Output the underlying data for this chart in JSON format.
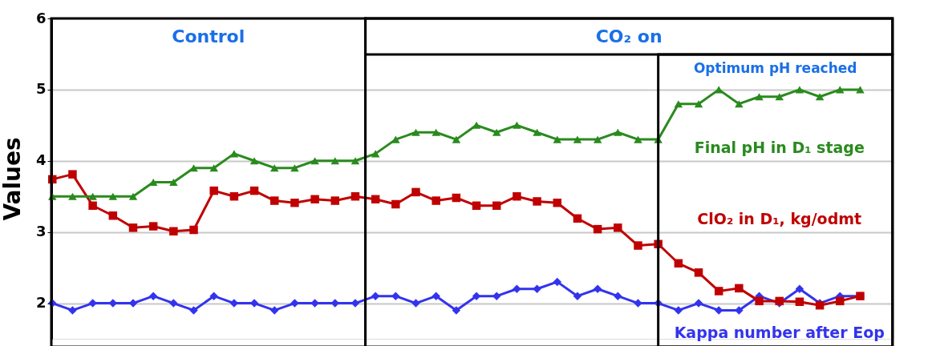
{
  "chart_data": {
    "type": "line",
    "ylabel": "Values",
    "ylim": [
      1.5,
      6
    ],
    "yticks": [
      2,
      3,
      4,
      5,
      6
    ],
    "tick_labels": "y",
    "grid": "y",
    "line_style": "solid",
    "categories": [
      null,
      null,
      null,
      null,
      null,
      null,
      null,
      null,
      null,
      null,
      null,
      null,
      null,
      null,
      null,
      null,
      null,
      null,
      null,
      null,
      null,
      null,
      null,
      null,
      null,
      null,
      null,
      null,
      null,
      null,
      null,
      null,
      null,
      null,
      null,
      null,
      null,
      null,
      null,
      null,
      null
    ],
    "series": [
      {
        "name": "Final pH in D₁ stage",
        "color": "#2a8a1e",
        "marker": "triangle",
        "values": [
          3.5,
          3.5,
          3.5,
          3.5,
          3.5,
          3.7,
          3.7,
          3.9,
          3.9,
          4.1,
          4.0,
          3.9,
          3.9,
          4.0,
          4.0,
          4.0,
          4.1,
          4.3,
          4.4,
          4.4,
          4.3,
          4.5,
          4.4,
          4.5,
          4.4,
          4.3,
          4.3,
          4.3,
          4.4,
          4.3,
          4.3,
          4.8,
          4.8,
          5.0,
          4.8,
          4.9,
          4.9,
          5.0,
          4.9,
          5.0,
          5.0
        ]
      },
      {
        "name": "ClO₂ in D₁, kg/odmt",
        "color": "#c00000",
        "marker": "square",
        "values": [
          3.74,
          3.81,
          3.37,
          3.23,
          3.06,
          3.08,
          3.01,
          3.03,
          3.58,
          3.5,
          3.58,
          3.44,
          3.41,
          3.46,
          3.44,
          3.5,
          3.46,
          3.39,
          3.56,
          3.44,
          3.48,
          3.37,
          3.37,
          3.5,
          3.43,
          3.41,
          3.19,
          3.04,
          3.06,
          2.81,
          2.83,
          2.56,
          2.43,
          2.17,
          2.21,
          2.03,
          2.03,
          2.02,
          1.97,
          2.03,
          2.1
        ]
      },
      {
        "name": "Kappa number after Eop",
        "color": "#3333ee",
        "marker": "diamond",
        "values": [
          2.0,
          1.9,
          2.0,
          2.0,
          2.0,
          2.1,
          2.0,
          1.9,
          2.1,
          2.0,
          2.0,
          1.9,
          2.0,
          2.0,
          2.0,
          2.0,
          2.1,
          2.1,
          2.0,
          2.1,
          1.9,
          2.1,
          2.1,
          2.2,
          2.2,
          2.3,
          2.1,
          2.2,
          2.1,
          2.0,
          2.0,
          1.9,
          2.0,
          1.9,
          1.9,
          2.1,
          2.0,
          2.2,
          2.0,
          2.1,
          2.1
        ]
      }
    ],
    "annotations": [
      "Control",
      "CO₂ on",
      "Optimum pH reached"
    ]
  }
}
